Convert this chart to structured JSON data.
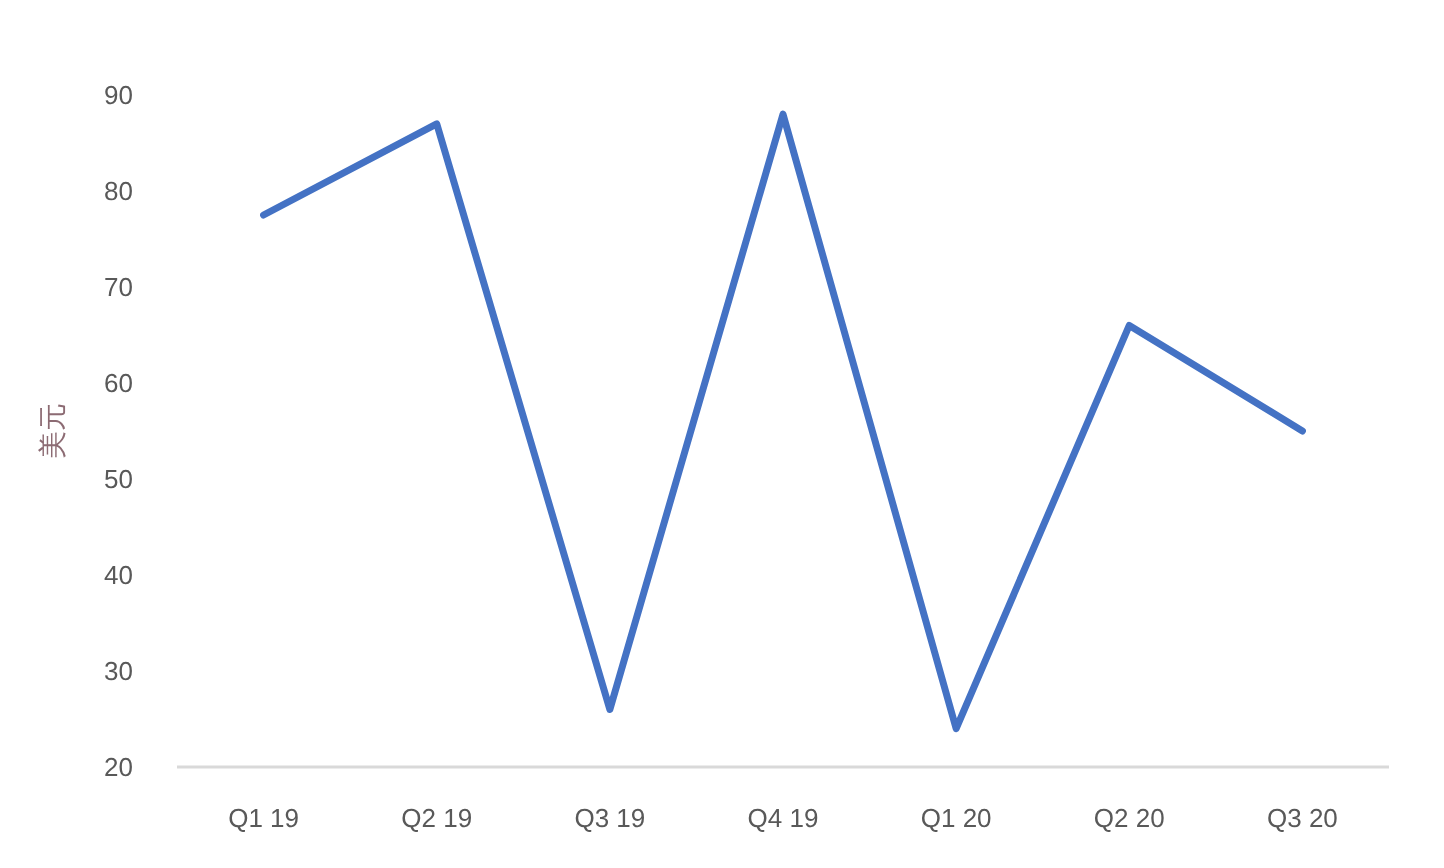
{
  "chart_data": {
    "type": "line",
    "ylabel": "美元",
    "categories": [
      "Q1 19",
      "Q2 19",
      "Q3 19",
      "Q4 19",
      "Q1 20",
      "Q2 20",
      "Q3 20"
    ],
    "series": [
      {
        "color": "#4472c4",
        "values": [
          77.5,
          87,
          26,
          88,
          24,
          66,
          55
        ]
      }
    ],
    "ylim": [
      20,
      90
    ],
    "yticks": [
      20,
      30,
      40,
      50,
      60,
      70,
      80,
      90
    ],
    "grid": false
  }
}
